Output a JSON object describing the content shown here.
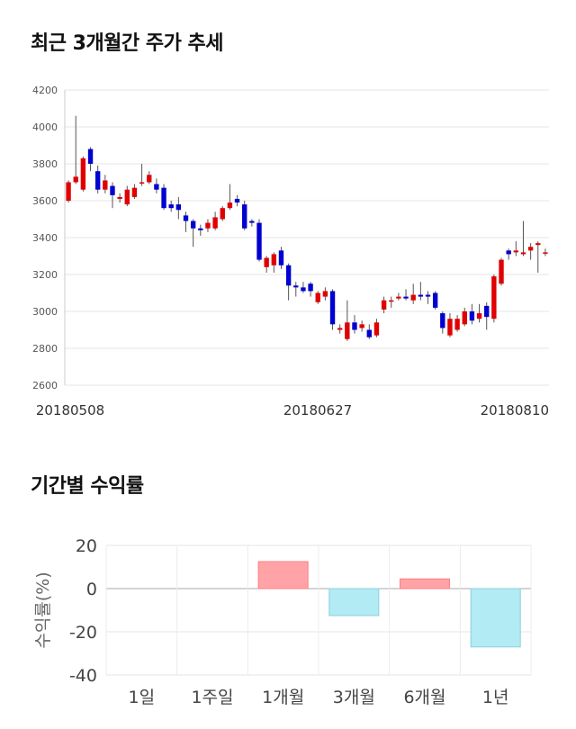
{
  "candle_chart": {
    "title": "최근 3개월간 주가 추세",
    "chart_data": {
      "type": "candlestick",
      "ylim": [
        2600,
        4200
      ],
      "y_ticks": [
        "2600",
        "2800",
        "3000",
        "3200",
        "3400",
        "3600",
        "3800",
        "4000",
        "4200"
      ],
      "x_labels": [
        "20180508",
        "20180627",
        "20180810"
      ],
      "grid": true,
      "colors": {
        "up": "#e00000",
        "down": "#0000d0",
        "wick": "#555555"
      },
      "candles": [
        [
          3600,
          3700,
          3590,
          3710
        ],
        [
          3700,
          3730,
          3690,
          4060
        ],
        [
          3660,
          3830,
          3650,
          3840
        ],
        [
          3880,
          3800,
          3760,
          3890
        ],
        [
          3760,
          3660,
          3640,
          3790
        ],
        [
          3660,
          3710,
          3640,
          3740
        ],
        [
          3680,
          3630,
          3560,
          3700
        ],
        [
          3610,
          3620,
          3590,
          3640
        ],
        [
          3580,
          3660,
          3570,
          3680
        ],
        [
          3620,
          3670,
          3610,
          3690
        ],
        [
          3700,
          3700,
          3680,
          3800
        ],
        [
          3700,
          3740,
          3690,
          3760
        ],
        [
          3690,
          3660,
          3640,
          3720
        ],
        [
          3670,
          3560,
          3550,
          3690
        ],
        [
          3580,
          3560,
          3540,
          3600
        ],
        [
          3580,
          3550,
          3500,
          3620
        ],
        [
          3520,
          3490,
          3430,
          3540
        ],
        [
          3490,
          3450,
          3350,
          3500
        ],
        [
          3450,
          3440,
          3410,
          3470
        ],
        [
          3450,
          3480,
          3430,
          3500
        ],
        [
          3450,
          3510,
          3440,
          3540
        ],
        [
          3500,
          3560,
          3490,
          3570
        ],
        [
          3560,
          3590,
          3550,
          3690
        ],
        [
          3610,
          3590,
          3570,
          3630
        ],
        [
          3580,
          3450,
          3440,
          3600
        ],
        [
          3490,
          3480,
          3460,
          3500
        ],
        [
          3480,
          3280,
          3270,
          3500
        ],
        [
          3240,
          3290,
          3210,
          3300
        ],
        [
          3250,
          3310,
          3210,
          3320
        ],
        [
          3330,
          3250,
          3230,
          3350
        ],
        [
          3250,
          3140,
          3060,
          3260
        ],
        [
          3140,
          3130,
          3080,
          3160
        ],
        [
          3130,
          3110,
          3100,
          3160
        ],
        [
          3150,
          3110,
          3080,
          3160
        ],
        [
          3050,
          3100,
          3040,
          3110
        ],
        [
          3080,
          3110,
          3060,
          3130
        ],
        [
          3110,
          2930,
          2900,
          3120
        ],
        [
          2900,
          2910,
          2880,
          2930
        ],
        [
          2850,
          2940,
          2840,
          3060
        ],
        [
          2940,
          2900,
          2880,
          2980
        ],
        [
          2910,
          2930,
          2890,
          2950
        ],
        [
          2900,
          2860,
          2850,
          2930
        ],
        [
          2870,
          2940,
          2860,
          2960
        ],
        [
          3010,
          3060,
          2990,
          3080
        ],
        [
          3060,
          3060,
          3020,
          3080
        ],
        [
          3070,
          3080,
          3060,
          3100
        ],
        [
          3080,
          3070,
          3060,
          3120
        ],
        [
          3060,
          3090,
          3040,
          3150
        ],
        [
          3090,
          3080,
          3060,
          3160
        ],
        [
          3090,
          3080,
          3040,
          3110
        ],
        [
          3100,
          3020,
          3010,
          3110
        ],
        [
          2990,
          2910,
          2880,
          3000
        ],
        [
          2870,
          2960,
          2860,
          2990
        ],
        [
          2900,
          2960,
          2890,
          2980
        ],
        [
          2930,
          3000,
          2920,
          3020
        ],
        [
          3000,
          2950,
          2930,
          3040
        ],
        [
          2960,
          2990,
          2940,
          3040
        ],
        [
          3030,
          2970,
          2900,
          3050
        ],
        [
          2960,
          3190,
          2940,
          3200
        ],
        [
          3150,
          3280,
          3140,
          3290
        ],
        [
          3330,
          3310,
          3280,
          3340
        ],
        [
          3320,
          3330,
          3300,
          3380
        ],
        [
          3310,
          3320,
          3300,
          3490
        ],
        [
          3330,
          3350,
          3280,
          3370
        ],
        [
          3360,
          3370,
          3210,
          3380
        ],
        [
          3320,
          3320,
          3300,
          3340
        ]
      ]
    }
  },
  "return_chart": {
    "title": "기간별 수익률",
    "chart_data": {
      "type": "bar",
      "categories": [
        "1일",
        "1주일",
        "1개월",
        "3개월",
        "6개월",
        "1년"
      ],
      "values": [
        0,
        0,
        12.5,
        -12.5,
        4.5,
        -27
      ],
      "ylabel": "수익률(%)",
      "ylim": [
        -40,
        20
      ],
      "y_ticks": [
        "20",
        "0",
        "-20",
        "-40"
      ],
      "colors": {
        "positive": "#ffa3a6",
        "negative": "#b2ebf4",
        "positive_border": "#ff7f84",
        "negative_border": "#8ccfe0"
      }
    }
  }
}
